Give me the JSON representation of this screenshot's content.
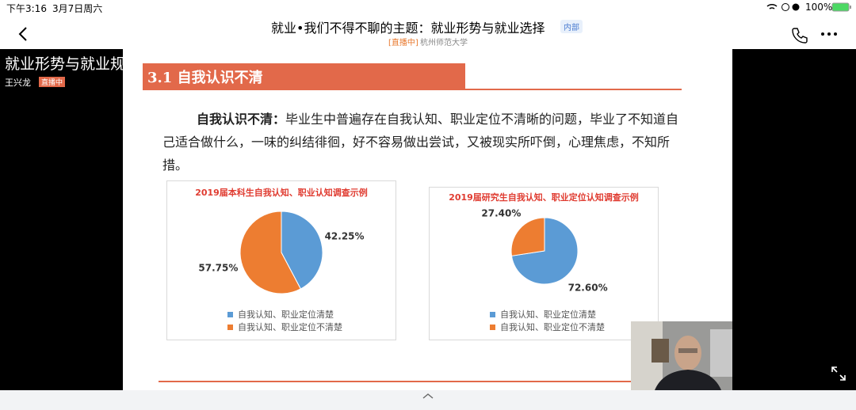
{
  "status_bar": {
    "time": "下午3:16",
    "date": "3月7日周六",
    "battery": "100%"
  },
  "header": {
    "title": "就业•我们不得不聊的主题：就业形势与就业选择",
    "badge": "内部",
    "live_tag": "[直播中]",
    "school": "杭州师范大学"
  },
  "stream": {
    "overlay_title": "就业形势与就业规划",
    "host": "王兴龙",
    "host_badge": "直播中"
  },
  "slide": {
    "heading": "3.1  自我认识不清",
    "lead": "自我认识不清：",
    "body": "毕业生中普遍存在自我认知、职业定位不清晰的问题，毕业了不知道自己适合做什么，一味的纠结徘徊，好不容易做出尝试，又被现实所吓倒，心理焦虑，不知所措。"
  },
  "chart_data": [
    {
      "type": "pie",
      "title": "2019届本科生自我认知、职业认知调查示例",
      "categories": [
        "自我认知、职业定位清楚",
        "自我认知、职业定位不清楚"
      ],
      "values": [
        42.25,
        57.75
      ],
      "value_labels": [
        "42.25%",
        "57.75%"
      ],
      "colors": [
        "#5b9bd5",
        "#ed7d31"
      ]
    },
    {
      "type": "pie",
      "title": "2019届研究生自我认知、职业定位认知调查示例",
      "categories": [
        "自我认知、职业定位清楚",
        "自我认知、职业定位不清楚"
      ],
      "values": [
        72.6,
        27.4
      ],
      "value_labels": [
        "72.60%",
        "27.40%"
      ],
      "colors": [
        "#5b9bd5",
        "#ed7d31"
      ]
    }
  ]
}
